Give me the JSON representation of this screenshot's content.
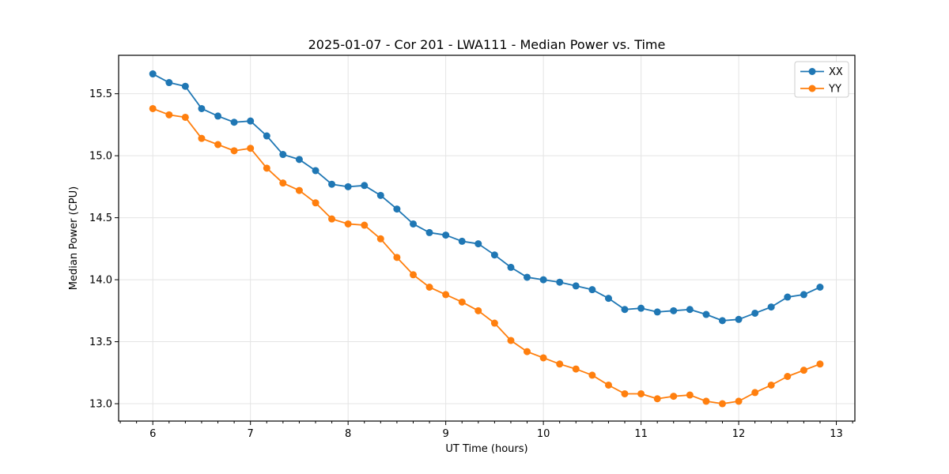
{
  "chart_data": {
    "type": "line",
    "title": "2025-01-07 - Cor 201 - LWA111 - Median Power vs. Time",
    "xlabel": "UT Time (hours)",
    "ylabel": "Median Power (CPU)",
    "xlim": [
      5.65,
      13.19
    ],
    "ylim": [
      12.86,
      15.81
    ],
    "xticks": [
      6,
      7,
      8,
      9,
      10,
      11,
      12,
      13
    ],
    "xtick_labels": [
      "6",
      "7",
      "8",
      "9",
      "10",
      "11",
      "12",
      "13"
    ],
    "x_minor_tick_step": 0.1667,
    "yticks": [
      13.0,
      13.5,
      14.0,
      14.5,
      15.0,
      15.5
    ],
    "ytick_labels": [
      "13.0",
      "13.5",
      "14.0",
      "14.5",
      "15.0",
      "15.5"
    ],
    "grid": true,
    "grid_color": "#e4e4e4",
    "legend_position": "upper right",
    "x": [
      6.0,
      6.167,
      6.333,
      6.5,
      6.667,
      6.833,
      7.0,
      7.167,
      7.333,
      7.5,
      7.667,
      7.833,
      8.0,
      8.167,
      8.333,
      8.5,
      8.667,
      8.833,
      9.0,
      9.167,
      9.333,
      9.5,
      9.667,
      9.833,
      10.0,
      10.167,
      10.333,
      10.5,
      10.667,
      10.833,
      11.0,
      11.167,
      11.333,
      11.5,
      11.667,
      11.833,
      12.0,
      12.167,
      12.333,
      12.5,
      12.667,
      12.833
    ],
    "series": [
      {
        "name": "XX",
        "color": "#1f77b4",
        "values": [
          15.66,
          15.59,
          15.56,
          15.38,
          15.32,
          15.27,
          15.28,
          15.16,
          15.01,
          14.97,
          14.88,
          14.77,
          14.75,
          14.76,
          14.68,
          14.57,
          14.45,
          14.38,
          14.36,
          14.31,
          14.29,
          14.2,
          14.1,
          14.02,
          14.0,
          13.98,
          13.95,
          13.92,
          13.85,
          13.76,
          13.77,
          13.74,
          13.75,
          13.76,
          13.72,
          13.67,
          13.68,
          13.73,
          13.78,
          13.86,
          13.88,
          13.94
        ]
      },
      {
        "name": "YY",
        "color": "#ff7f0e",
        "values": [
          15.38,
          15.33,
          15.31,
          15.14,
          15.09,
          15.04,
          15.06,
          14.9,
          14.78,
          14.72,
          14.62,
          14.49,
          14.45,
          14.44,
          14.33,
          14.18,
          14.04,
          13.94,
          13.88,
          13.82,
          13.75,
          13.65,
          13.51,
          13.42,
          13.37,
          13.32,
          13.28,
          13.23,
          13.15,
          13.08,
          13.08,
          13.04,
          13.06,
          13.07,
          13.02,
          13.0,
          13.02,
          13.09,
          13.15,
          13.22,
          13.27,
          13.32
        ]
      }
    ]
  }
}
